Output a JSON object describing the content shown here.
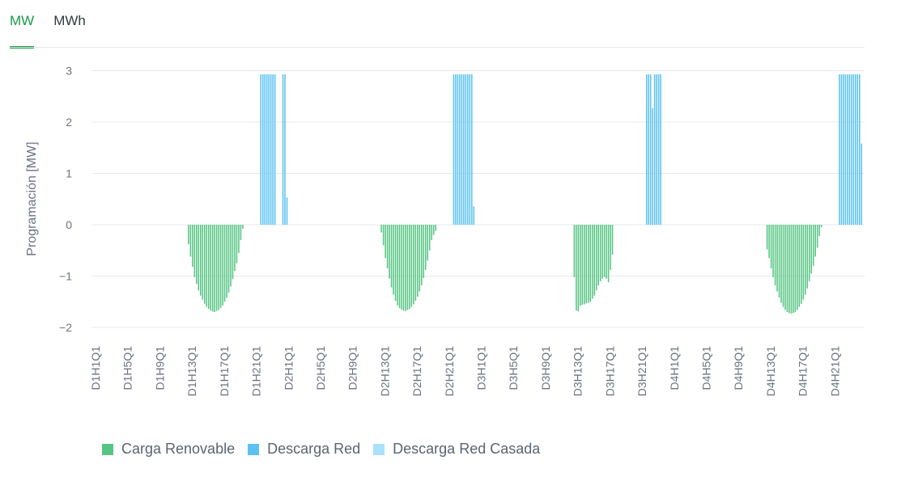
{
  "tabs": [
    {
      "label": "MW",
      "active": true
    },
    {
      "label": "MWh",
      "active": false
    }
  ],
  "colors": {
    "carga_renovable": "#56c583",
    "descarga_red": "#5bc2f2",
    "descarga_red_casada": "#a9e2fb",
    "accent": "#1a9a48"
  },
  "chart_data": {
    "type": "bar",
    "ylabel": "Programación [MW]",
    "ylim": [
      -2.2,
      3
    ],
    "yticks": [
      3,
      2,
      1,
      0,
      -1,
      -2
    ],
    "ytick_labels": [
      "3",
      "2",
      "1",
      "0",
      "−1",
      "−2"
    ],
    "x_tick_labels": [
      "D1H1Q1",
      "D1H5Q1",
      "D1H9Q1",
      "D1H13Q1",
      "D1H17Q1",
      "D1H21Q1",
      "D2H1Q1",
      "D2H5Q1",
      "D2H9Q1",
      "D2H13Q1",
      "D2H17Q1",
      "D2H21Q1",
      "D3H1Q1",
      "D3H5Q1",
      "D3H9Q1",
      "D3H13Q1",
      "D3H17Q1",
      "D3H21Q1",
      "D4H1Q1",
      "D4H5Q1",
      "D4H9Q1",
      "D4H13Q1",
      "D4H17Q1",
      "D4H21Q1"
    ],
    "x_tick_step": 16,
    "n_slots": 384,
    "grid": true,
    "legend_position": "bottom-left",
    "series": [
      {
        "name": "Carga Renovable",
        "color": "#56c583",
        "start_slot": 48,
        "values": [
          [
            -0.38,
            -0.62,
            -0.82,
            -1.02,
            -1.15,
            -1.28,
            -1.38,
            -1.46,
            -1.54,
            -1.6,
            -1.64,
            -1.67,
            -1.69,
            -1.7,
            -1.68,
            -1.66,
            -1.62,
            -1.57,
            -1.5,
            -1.42,
            -1.32,
            -1.2,
            -1.06,
            -0.9,
            -0.75,
            -0.55,
            -0.3,
            -0.08
          ],
          [
            -0.15,
            -0.4,
            -0.65,
            -0.85,
            -1.05,
            -1.22,
            -1.36,
            -1.48,
            -1.57,
            -1.62,
            -1.65,
            -1.67,
            -1.68,
            -1.66,
            -1.64,
            -1.6,
            -1.55,
            -1.48,
            -1.4,
            -1.3,
            -1.18,
            -1.04,
            -0.88,
            -0.7,
            -0.5,
            -0.3,
            -0.2,
            -0.12
          ],
          [
            -1.02,
            -1.67,
            -1.69,
            -1.58,
            -1.56,
            -1.55,
            -1.53,
            -1.52,
            -1.5,
            -1.44,
            -1.38,
            -1.28,
            -1.18,
            -1.1,
            -1.05,
            -1.02,
            -1.05,
            -1.12,
            -0.88,
            -0.58,
            0,
            0,
            0,
            0,
            0,
            0,
            0,
            0
          ],
          [
            -0.48,
            -0.65,
            -0.85,
            -1.02,
            -1.18,
            -1.3,
            -1.42,
            -1.52,
            -1.6,
            -1.66,
            -1.7,
            -1.72,
            -1.73,
            -1.72,
            -1.7,
            -1.66,
            -1.6,
            -1.54,
            -1.46,
            -1.36,
            -1.24,
            -1.1,
            -0.95,
            -0.8,
            -0.62,
            -0.45,
            -0.22,
            -0.05
          ]
        ],
        "day_offset": 96
      },
      {
        "name": "Descarga Red",
        "color": "#5bc2f2",
        "points": [
          [
            84,
            2.93
          ],
          [
            85,
            2.93
          ],
          [
            86,
            2.93
          ],
          [
            87,
            2.93
          ],
          [
            88,
            2.93
          ],
          [
            89,
            2.93
          ],
          [
            90,
            2.93
          ],
          [
            91,
            2.93
          ],
          [
            95,
            2.93
          ],
          [
            96,
            2.93
          ],
          [
            97,
            0.53
          ],
          [
            180,
            2.93
          ],
          [
            181,
            2.93
          ],
          [
            182,
            2.93
          ],
          [
            183,
            2.93
          ],
          [
            184,
            2.93
          ],
          [
            185,
            2.93
          ],
          [
            186,
            2.93
          ],
          [
            187,
            2.93
          ],
          [
            188,
            2.93
          ],
          [
            189,
            2.93
          ],
          [
            190,
            0.36
          ],
          [
            276,
            2.93
          ],
          [
            277,
            2.93
          ],
          [
            278,
            2.93
          ],
          [
            279,
            2.27
          ],
          [
            280,
            2.93
          ],
          [
            281,
            2.93
          ],
          [
            282,
            2.93
          ],
          [
            283,
            2.93
          ],
          [
            372,
            2.93
          ],
          [
            373,
            2.93
          ],
          [
            374,
            2.93
          ],
          [
            375,
            2.93
          ],
          [
            376,
            2.93
          ],
          [
            377,
            2.93
          ],
          [
            378,
            2.93
          ],
          [
            379,
            2.93
          ],
          [
            380,
            2.93
          ],
          [
            381,
            2.93
          ],
          [
            382,
            2.93
          ],
          [
            383,
            1.58
          ]
        ]
      },
      {
        "name": "Descarga Red Casada",
        "color": "#a9e2fb",
        "points": []
      }
    ]
  }
}
